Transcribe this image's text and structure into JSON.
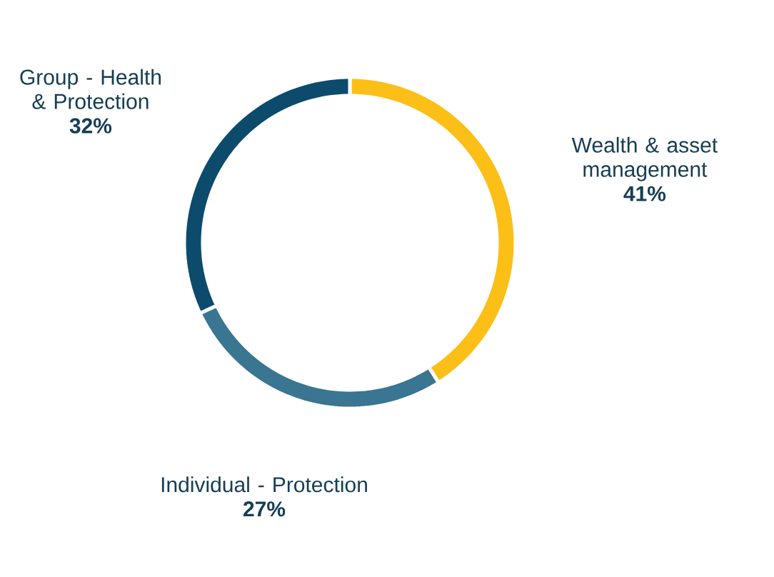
{
  "chart_data": {
    "type": "donut",
    "categories": [
      "Wealth & asset management",
      "Individual - Protection",
      "Group - Health & Protection"
    ],
    "values": [
      41,
      27,
      32
    ],
    "value_labels": [
      "41%",
      "27%",
      "32%"
    ],
    "colors": [
      "#fcbf17",
      "#3a7591",
      "#0d4b6d"
    ]
  }
}
